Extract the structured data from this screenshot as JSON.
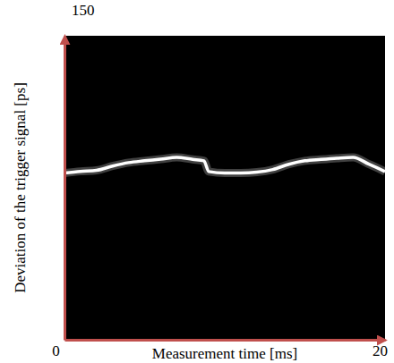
{
  "chart_data": {
    "type": "line",
    "x_label": "Measurement time [ms]",
    "y_label": "Deviation of the trigger signal [ps]",
    "x": [
      0,
      1,
      2,
      3,
      4,
      5,
      6,
      7,
      8,
      8.7,
      9,
      10,
      11,
      12,
      13,
      14,
      15,
      16,
      17,
      18,
      19,
      20
    ],
    "values": [
      82.3,
      83.1,
      83.6,
      85.7,
      87.4,
      88.3,
      89.1,
      90,
      89,
      88.3,
      83,
      82.3,
      82.3,
      82.7,
      84,
      86.6,
      88.3,
      89,
      89.6,
      90,
      86.6,
      83
    ],
    "color": "#ffffff",
    "xlim": [
      0,
      20
    ],
    "xticks": [
      0,
      20
    ],
    "ylim": [
      0,
      150
    ],
    "yticks": [
      150
    ],
    "grid": false
  }
}
